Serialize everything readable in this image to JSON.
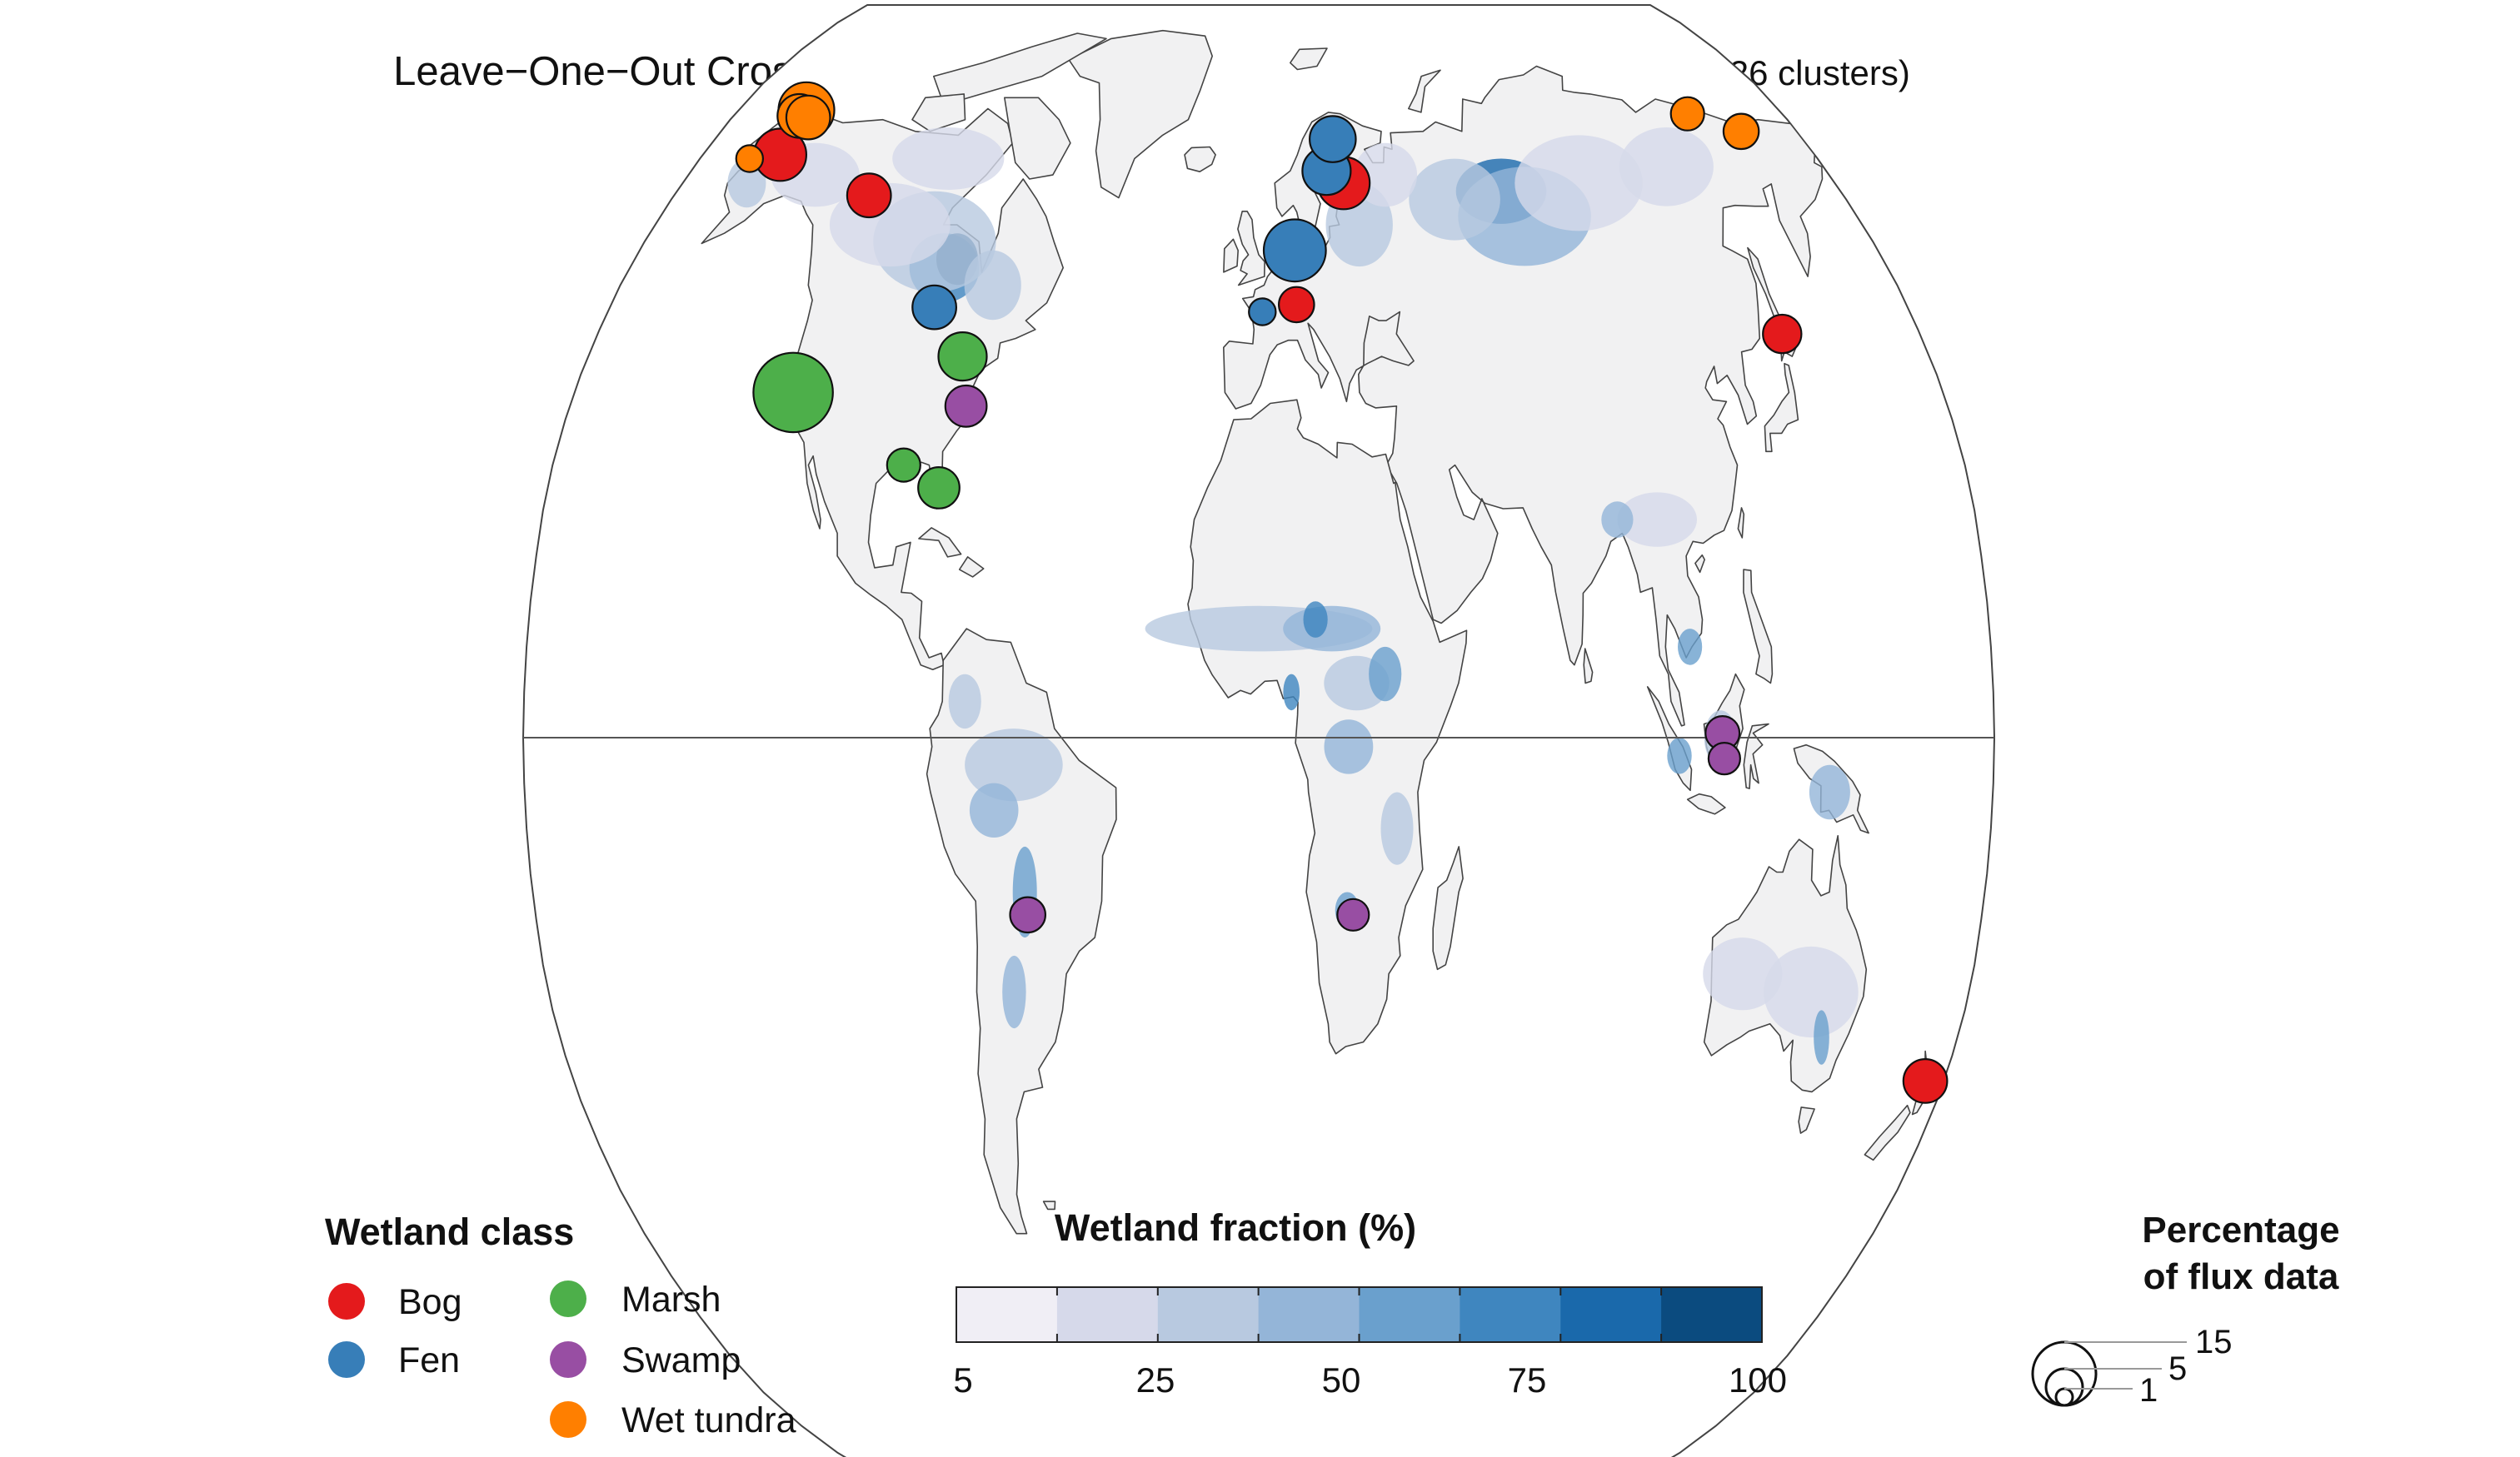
{
  "title": {
    "main": "Leave−One−Out Cross−Validation Cluster",
    "sub": "(43 sites across 26 clusters)"
  },
  "colors": {
    "ocean": "#ffffff",
    "land": "#f1f1f2",
    "coast": "#444444",
    "bog": "#e41a1c",
    "fen": "#377eb8",
    "marsh": "#4daf4a",
    "swamp": "#984ea3",
    "wet_tundra": "#ff7f00",
    "wetland_ramp": [
      "#f0eef5",
      "#d6d9ea",
      "#b8c9e0",
      "#94b5d8",
      "#6aa0cd",
      "#3f86bf",
      "#1a69ab",
      "#0b4b7f"
    ]
  },
  "legend_class": {
    "title": "Wetland class",
    "items": [
      {
        "label": "Bog",
        "key": "bog"
      },
      {
        "label": "Fen",
        "key": "fen"
      },
      {
        "label": "Marsh",
        "key": "marsh"
      },
      {
        "label": "Swamp",
        "key": "swamp"
      },
      {
        "label": "Wet tundra",
        "key": "wet_tundra"
      }
    ]
  },
  "legend_fraction": {
    "title": "Wetland fraction (%)",
    "ticks": [
      "5",
      "25",
      "50",
      "75",
      "100"
    ]
  },
  "legend_size": {
    "title_line1": "Percentage",
    "title_line2": "of flux data",
    "values": [
      "15",
      "5",
      "1"
    ]
  },
  "sites": [
    {
      "cls": "wet_tundra",
      "lon": -156.6,
      "lat": 71.3,
      "pct": 6
    },
    {
      "cls": "wet_tundra",
      "lon": -157.4,
      "lat": 70.5,
      "pct": 3
    },
    {
      "cls": "wet_tundra",
      "lon": -154.0,
      "lat": 70.3,
      "pct": 3
    },
    {
      "cls": "wet_tundra",
      "lon": -164.0,
      "lat": 65.0,
      "pct": 0.5
    },
    {
      "cls": "bog",
      "lon": -155.0,
      "lat": 65.5,
      "pct": 5
    },
    {
      "cls": "bog",
      "lon": -120.0,
      "lat": 60.5,
      "pct": 3
    },
    {
      "cls": "fen",
      "lon": -90.0,
      "lat": 47.5,
      "pct": 3
    },
    {
      "cls": "marsh",
      "lon": -122.5,
      "lat": 38.0,
      "pct": 15
    },
    {
      "cls": "marsh",
      "lon": -79.5,
      "lat": 42.0,
      "pct": 4
    },
    {
      "cls": "swamp",
      "lon": -76.5,
      "lat": 36.5,
      "pct": 2.5
    },
    {
      "cls": "marsh",
      "lon": -90.5,
      "lat": 30.0,
      "pct": 1.2
    },
    {
      "cls": "marsh",
      "lon": -81.0,
      "lat": 27.5,
      "pct": 2.5
    },
    {
      "cls": "swamp",
      "lon": -57.5,
      "lat": -19.5,
      "pct": 1.5
    },
    {
      "cls": "fen",
      "lon": 24.5,
      "lat": 67.5,
      "pct": 3.5
    },
    {
      "cls": "fen",
      "lon": 21.5,
      "lat": 63.5,
      "pct": 4
    },
    {
      "cls": "bog",
      "lon": 26.5,
      "lat": 62.0,
      "pct": 5
    },
    {
      "cls": "fen",
      "lon": 10.5,
      "lat": 54.0,
      "pct": 8
    },
    {
      "cls": "fen",
      "lon": 1.0,
      "lat": 47.0,
      "pct": 0.5
    },
    {
      "cls": "bog",
      "lon": 10.5,
      "lat": 47.8,
      "pct": 1.5
    },
    {
      "cls": "swamp",
      "lon": 23.5,
      "lat": -19.5,
      "pct": 1
    },
    {
      "cls": "wet_tundra",
      "lon": 147.5,
      "lat": 70.8,
      "pct": 1.2
    },
    {
      "cls": "wet_tundra",
      "lon": 161.5,
      "lat": 68.5,
      "pct": 1.5
    },
    {
      "cls": "bog",
      "lon": 142.5,
      "lat": 44.5,
      "pct": 2
    },
    {
      "cls": "swamp",
      "lon": 113.5,
      "lat": 0.5,
      "pct": 1.3
    },
    {
      "cls": "swamp",
      "lon": 114.0,
      "lat": -2.3,
      "pct": 1
    },
    {
      "cls": "bog",
      "lon": 175.2,
      "lat": -37.8,
      "pct": 3
    }
  ]
}
